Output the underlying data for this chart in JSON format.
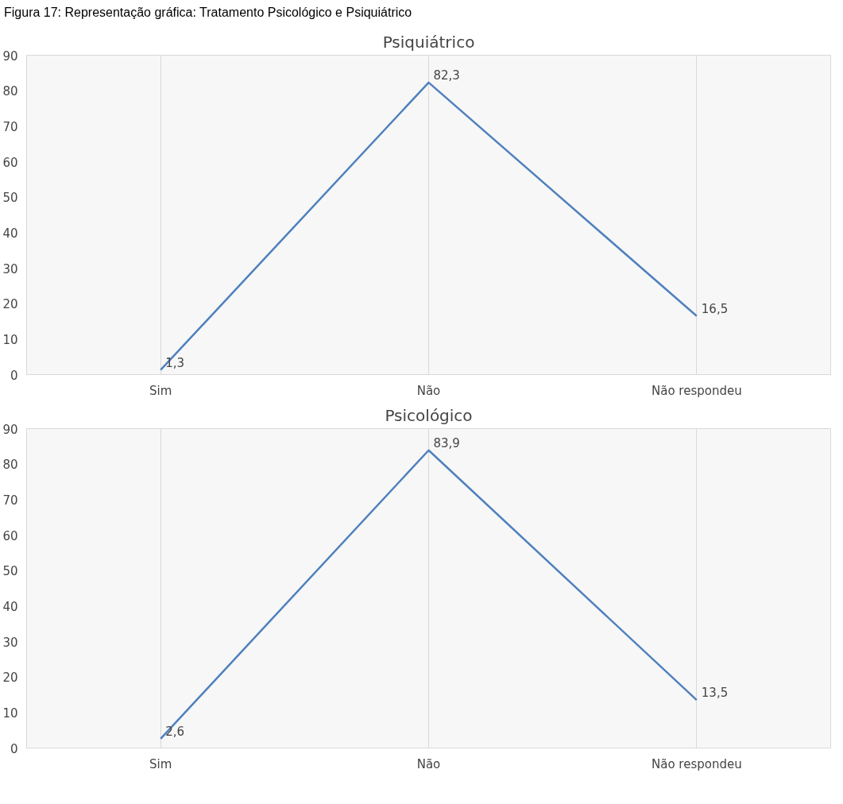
{
  "chart_data": [
    {
      "type": "line",
      "title": "Psiquiátrico",
      "annotations": [
        "Figura 17: Representação gráfica: Tratamento Psicológico e Psiquiátrico"
      ],
      "categories": [
        "Sim",
        "Não",
        "Não respondeu"
      ],
      "series": [
        {
          "color": "#4f81bd",
          "values": [
            1.3,
            82.3,
            16.5
          ]
        }
      ],
      "value_labels": [
        "1,3",
        "82,3",
        "16,5"
      ],
      "ylim": [
        0,
        90
      ],
      "yticks": [
        0,
        10,
        20,
        30,
        40,
        50,
        60,
        70,
        80,
        90
      ],
      "grid": "x"
    },
    {
      "type": "line",
      "title": "Psicológico",
      "categories": [
        "Sim",
        "Não",
        "Não respondeu"
      ],
      "series": [
        {
          "color": "#4f81bd",
          "values": [
            2.6,
            83.9,
            13.5
          ]
        }
      ],
      "value_labels": [
        "2,6",
        "83,9",
        "13,5"
      ],
      "ylim": [
        0,
        90
      ],
      "yticks": [
        0,
        10,
        20,
        30,
        40,
        50,
        60,
        70,
        80,
        90
      ],
      "grid": "x"
    }
  ]
}
